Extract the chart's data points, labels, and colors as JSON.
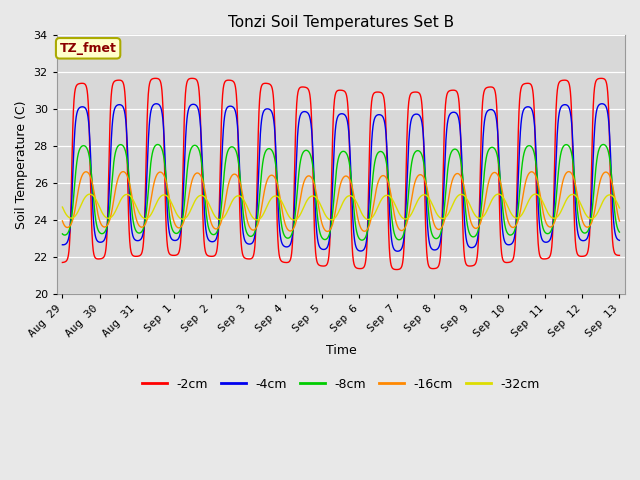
{
  "title": "Tonzi Soil Temperatures Set B",
  "xlabel": "Time",
  "ylabel": "Soil Temperature (C)",
  "annotation_text": "TZ_fmet",
  "annotation_color": "#8B0000",
  "annotation_bg": "#FFFFCC",
  "annotation_edge": "#AAAA00",
  "ylim": [
    20,
    34
  ],
  "bg_color": "#D8D8D8",
  "fig_bg": "#E8E8E8",
  "series": [
    {
      "label": "-2cm",
      "color": "#FF0000",
      "amplitude": 4.8,
      "phase": 0.0,
      "mean": 26.5,
      "sharpness": 3.0
    },
    {
      "label": "-4cm",
      "color": "#0000EE",
      "amplitude": 3.7,
      "phase": 0.18,
      "mean": 26.3,
      "sharpness": 2.2
    },
    {
      "label": "-8cm",
      "color": "#00CC00",
      "amplitude": 2.4,
      "phase": 0.42,
      "mean": 25.5,
      "sharpness": 1.5
    },
    {
      "label": "-16cm",
      "color": "#FF8800",
      "amplitude": 1.5,
      "phase": 0.85,
      "mean": 25.0,
      "sharpness": 1.0
    },
    {
      "label": "-32cm",
      "color": "#DDDD00",
      "amplitude": 0.65,
      "phase": 1.5,
      "mean": 24.7,
      "sharpness": 0.6
    }
  ],
  "tick_labels": [
    "Aug 29",
    "Aug 30",
    "Aug 31",
    "Sep 1",
    "Sep 2",
    "Sep 3",
    "Sep 4",
    "Sep 5",
    "Sep 6",
    "Sep 7",
    "Sep 8",
    "Sep 9",
    "Sep 10",
    "Sep 11",
    "Sep 12",
    "Sep 13"
  ],
  "tick_positions": [
    0,
    1,
    2,
    3,
    4,
    5,
    6,
    7,
    8,
    9,
    10,
    11,
    12,
    13,
    14,
    15
  ],
  "num_days": 15,
  "pts_per_day": 240,
  "period": 1.0
}
